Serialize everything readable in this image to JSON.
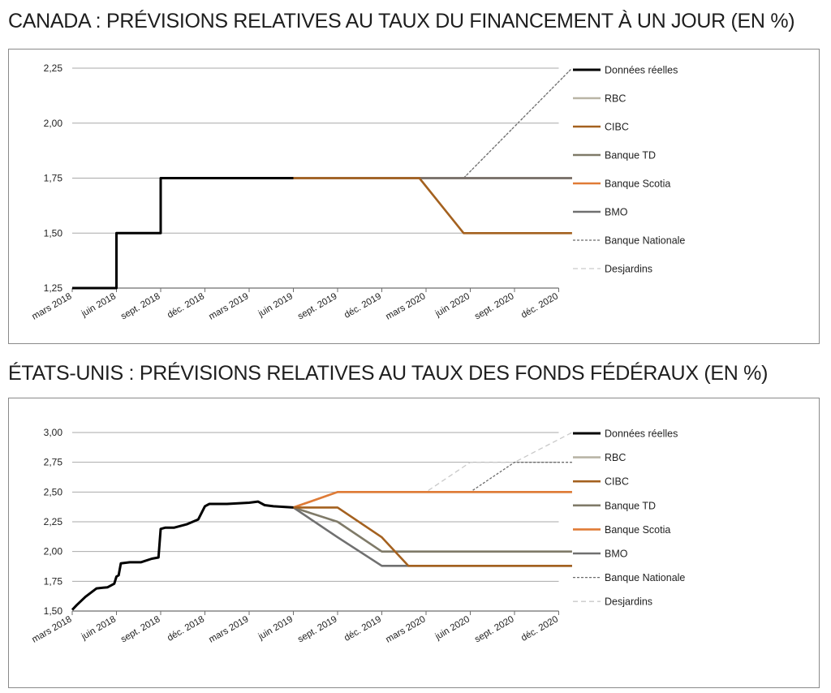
{
  "chart_data": [
    {
      "type": "line",
      "title": "CANADA : PRÉVISIONS RELATIVES AU TAUX DU FINANCEMENT À UN JOUR (EN %)",
      "xlabel": "",
      "ylabel": "",
      "x_ticks": [
        "mars 2018",
        "juin 2018",
        "sept. 2018",
        "déc. 2018",
        "mars 2019",
        "juin 2019",
        "sept. 2019",
        "déc. 2019",
        "mars 2020",
        "juin 2020",
        "sept. 2020",
        "déc. 2020"
      ],
      "y_ticks": [
        "1,25",
        "1,50",
        "1,75",
        "2,00",
        "2,25"
      ],
      "ylim": [
        1.25,
        2.25
      ],
      "grid": "horizontal",
      "legend_position": "right",
      "series": [
        {
          "name": "Données réelles",
          "color": "#000000",
          "style": "solid",
          "points": [
            [
              0,
              1.25
            ],
            [
              1,
              1.25
            ],
            [
              1,
              1.5
            ],
            [
              2,
              1.5
            ],
            [
              2,
              1.75
            ],
            [
              5,
              1.75
            ]
          ]
        },
        {
          "name": "RBC",
          "color": "#b9b5a6",
          "style": "solid",
          "points": [
            [
              5,
              1.75
            ],
            [
              11.3,
              1.75
            ]
          ]
        },
        {
          "name": "CIBC",
          "color": "#a4611f",
          "style": "solid",
          "points": [
            [
              5,
              1.75
            ],
            [
              7.85,
              1.75
            ],
            [
              8.85,
              1.5
            ],
            [
              11.3,
              1.5
            ]
          ]
        },
        {
          "name": "Banque TD",
          "color": "#7f7a68",
          "style": "solid",
          "points": [
            [
              5,
              1.75
            ],
            [
              11.3,
              1.75
            ]
          ]
        },
        {
          "name": "Banque Scotia",
          "color": "#e07b36",
          "style": "solid",
          "points": [
            [
              5,
              1.75
            ],
            [
              11.3,
              1.75
            ]
          ]
        },
        {
          "name": "BMO",
          "color": "#707070",
          "style": "solid",
          "points": [
            [
              5,
              1.75
            ],
            [
              11.3,
              1.75
            ]
          ]
        },
        {
          "name": "Banque Nationale",
          "color": "#6b6b6b",
          "style": "dotted",
          "points": [
            [
              5,
              1.75
            ],
            [
              8.85,
              1.75
            ],
            [
              11.3,
              2.25
            ]
          ]
        },
        {
          "name": "Desjardins",
          "color": "#c9c9c9",
          "style": "dashed",
          "points": [
            [
              5,
              1.75
            ],
            [
              8.85,
              1.75
            ],
            [
              11.3,
              2.25
            ]
          ]
        }
      ]
    },
    {
      "type": "line",
      "title": "ÉTATS-UNIS : PRÉVISIONS RELATIVES AU TAUX DES FONDS FÉDÉRAUX (EN %)",
      "xlabel": "",
      "ylabel": "",
      "x_ticks": [
        "mars 2018",
        "juin 2018",
        "sept. 2018",
        "déc. 2018",
        "mars 2019",
        "juin 2019",
        "sept. 2019",
        "déc. 2019",
        "mars 2020",
        "juin 2020",
        "sept. 2020",
        "déc. 2020"
      ],
      "y_ticks": [
        "1,50",
        "1,75",
        "2,00",
        "2,25",
        "2,50",
        "2,75",
        "3,00"
      ],
      "ylim": [
        1.5,
        3.0
      ],
      "grid": "horizontal",
      "legend_position": "right",
      "series": [
        {
          "name": "Données réelles",
          "color": "#000000",
          "style": "solid",
          "points": [
            [
              0,
              1.51
            ],
            [
              0.1,
              1.55
            ],
            [
              0.3,
              1.62
            ],
            [
              0.55,
              1.69
            ],
            [
              0.8,
              1.7
            ],
            [
              0.95,
              1.73
            ],
            [
              1.0,
              1.79
            ],
            [
              1.05,
              1.8
            ],
            [
              1.1,
              1.9
            ],
            [
              1.3,
              1.91
            ],
            [
              1.55,
              1.91
            ],
            [
              1.8,
              1.94
            ],
            [
              1.95,
              1.95
            ],
            [
              2.0,
              2.19
            ],
            [
              2.1,
              2.2
            ],
            [
              2.3,
              2.2
            ],
            [
              2.6,
              2.23
            ],
            [
              2.85,
              2.27
            ],
            [
              3.0,
              2.38
            ],
            [
              3.1,
              2.4
            ],
            [
              3.5,
              2.4
            ],
            [
              4.0,
              2.41
            ],
            [
              4.2,
              2.42
            ],
            [
              4.35,
              2.39
            ],
            [
              4.55,
              2.38
            ],
            [
              5.0,
              2.37
            ]
          ]
        },
        {
          "name": "RBC",
          "color": "#b9b5a6",
          "style": "solid",
          "points": [
            [
              5,
              2.37
            ],
            [
              6,
              2.5
            ],
            [
              11.3,
              2.5
            ]
          ]
        },
        {
          "name": "CIBC",
          "color": "#a4611f",
          "style": "solid",
          "points": [
            [
              5,
              2.37
            ],
            [
              6,
              2.37
            ],
            [
              7,
              2.12
            ],
            [
              7.6,
              1.88
            ],
            [
              11.3,
              1.88
            ]
          ]
        },
        {
          "name": "Banque TD",
          "color": "#7f7a68",
          "style": "solid",
          "points": [
            [
              5,
              2.37
            ],
            [
              6,
              2.25
            ],
            [
              7,
              2.0
            ],
            [
              11.3,
              2.0
            ]
          ]
        },
        {
          "name": "Banque Scotia",
          "color": "#e07b36",
          "style": "solid",
          "points": [
            [
              5,
              2.37
            ],
            [
              6,
              2.5
            ],
            [
              11.3,
              2.5
            ]
          ]
        },
        {
          "name": "BMO",
          "color": "#707070",
          "style": "solid",
          "points": [
            [
              5,
              2.37
            ],
            [
              6,
              2.12
            ],
            [
              7,
              1.88
            ],
            [
              11.3,
              1.88
            ]
          ]
        },
        {
          "name": "Banque Nationale",
          "color": "#6b6b6b",
          "style": "dotted",
          "points": [
            [
              5,
              2.37
            ],
            [
              6,
              2.5
            ],
            [
              9,
              2.5
            ],
            [
              10,
              2.75
            ],
            [
              11.3,
              2.75
            ]
          ]
        },
        {
          "name": "Desjardins",
          "color": "#c9c9c9",
          "style": "dashed",
          "points": [
            [
              5,
              2.37
            ],
            [
              6,
              2.5
            ],
            [
              8,
              2.5
            ],
            [
              9,
              2.75
            ],
            [
              10,
              2.75
            ],
            [
              11.3,
              3.0
            ]
          ]
        }
      ]
    }
  ]
}
